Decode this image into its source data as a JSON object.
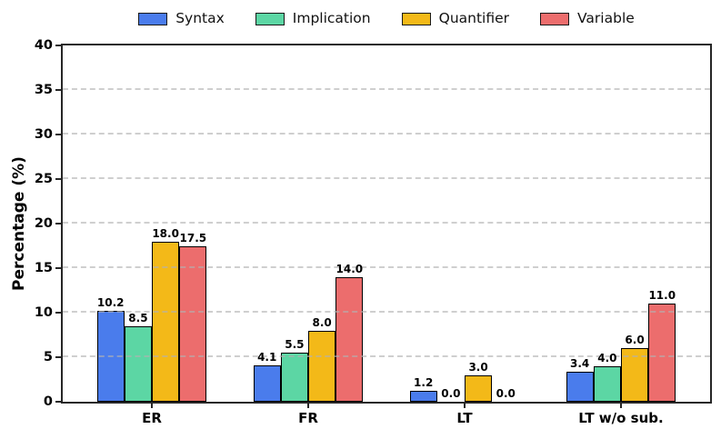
{
  "figure": {
    "background": "#ffffff"
  },
  "chart_data": {
    "type": "bar",
    "title": "",
    "xlabel": "",
    "ylabel": "Percentage (%)",
    "categories": [
      "ER",
      "FR",
      "LT",
      "LT w/o sub."
    ],
    "series": [
      {
        "name": "Syntax",
        "color": "#4a7cec",
        "values": [
          10.2,
          4.1,
          1.2,
          3.4
        ],
        "labels": [
          "10.2",
          "4.1",
          "1.2",
          "3.4"
        ]
      },
      {
        "name": "Implication",
        "color": "#5cd6a4",
        "values": [
          8.5,
          5.5,
          0.0,
          4.0
        ],
        "labels": [
          "8.5",
          "5.5",
          "0.0",
          "4.0"
        ]
      },
      {
        "name": "Quantifier",
        "color": "#f3b918",
        "values": [
          18.0,
          8.0,
          3.0,
          6.0
        ],
        "labels": [
          "18.0",
          "8.0",
          "3.0",
          "6.0"
        ]
      },
      {
        "name": "Variable",
        "color": "#ec6d6d",
        "values": [
          17.5,
          14.0,
          0.0,
          11.0
        ],
        "labels": [
          "17.5",
          "14.0",
          "0.0",
          "11.0"
        ]
      }
    ],
    "ylim": [
      0,
      40
    ],
    "yticks": [
      0,
      5,
      10,
      15,
      20,
      25,
      30,
      35,
      40
    ],
    "grid": "horizontal-dashed",
    "gridline_color": "#c9c9c9",
    "legend_position": "top-center",
    "bar_edge_color": "#000000",
    "spine_color": "#262626"
  }
}
